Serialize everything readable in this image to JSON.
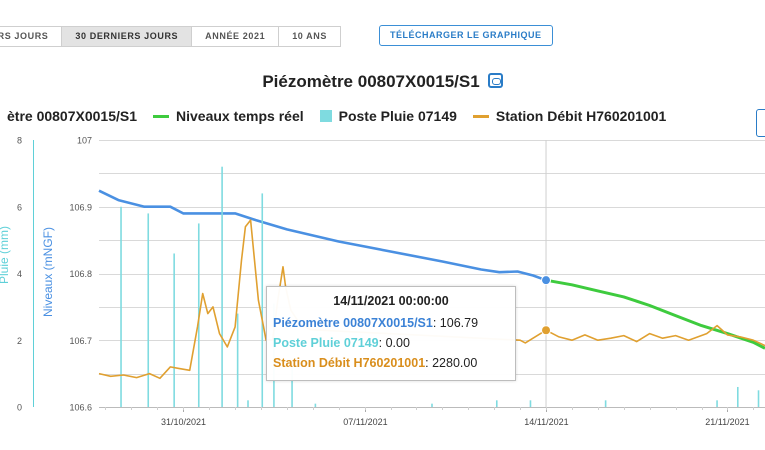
{
  "tabs": [
    {
      "label": "ERS JOURS",
      "active": false
    },
    {
      "label": "30 DERNIERS JOURS",
      "active": true
    },
    {
      "label": "ANNÉE 2021",
      "active": false
    },
    {
      "label": "10 ANS",
      "active": false
    }
  ],
  "download_label": "TÉLÉCHARGER LE GRAPHIQUE",
  "title": "Piézomètre 00807X0015/S1",
  "legend": [
    {
      "label": "ètre 00807X0015/S1",
      "color": "#4a90e2",
      "symbol": "line"
    },
    {
      "label": "Niveaux temps réel",
      "color": "#3ecb3e",
      "symbol": "line"
    },
    {
      "label": "Poste Pluie 07149",
      "color": "#7fdbe0",
      "symbol": "rect"
    },
    {
      "label": "Station Débit H760201001",
      "color": "#e0a030",
      "symbol": "line"
    }
  ],
  "tooltip": {
    "title": "14/11/2021 00:00:00",
    "rows": [
      {
        "name": "Piézomètre 00807X0015/S1",
        "value": "106.79",
        "color": "#3b82d6"
      },
      {
        "name": "Poste Pluie 07149",
        "value": "0.00",
        "color": "#5fd0d8"
      },
      {
        "name": "Station Débit H760201001",
        "value": "2280.00",
        "color": "#d98e1c"
      }
    ]
  },
  "chart_data": {
    "type": "line",
    "x_axis": {
      "ticks": [
        "31/10/2021",
        "07/11/2021",
        "14/11/2021",
        "21/11/2021"
      ],
      "tick_days": [
        0,
        7,
        14,
        21
      ],
      "range_days": [
        -3.25,
        22.45
      ]
    },
    "left_axis": {
      "label": "Pluie (mm)",
      "ticks": [
        "0",
        "2",
        "4",
        "6",
        "8"
      ],
      "range": [
        0,
        8
      ],
      "color": "#5fd0d8"
    },
    "right_axis": {
      "label": "Niveaux (mNGF)",
      "ticks": [
        "106.6",
        "106.7",
        "106.8",
        "106.9",
        "107"
      ],
      "range": [
        106.6,
        107
      ],
      "color": "#4a90e2"
    },
    "series": [
      {
        "name": "Piézomètre 00807X0015/S1",
        "color": "#4a90e2",
        "axis": "level",
        "points": [
          [
            -3.25,
            106.924
          ],
          [
            -2.5,
            106.91
          ],
          [
            -1.5,
            106.9
          ],
          [
            -0.5,
            106.9
          ],
          [
            0,
            106.89
          ],
          [
            1,
            106.89
          ],
          [
            2,
            106.89
          ],
          [
            2.8,
            106.88
          ],
          [
            4,
            106.866
          ],
          [
            6,
            106.848
          ],
          [
            8,
            106.833
          ],
          [
            10,
            106.818
          ],
          [
            11.5,
            106.806
          ],
          [
            12.2,
            106.802
          ],
          [
            12.9,
            106.803
          ],
          [
            13.5,
            106.797
          ],
          [
            14,
            106.79
          ]
        ]
      },
      {
        "name": "Niveaux temps réel",
        "color": "#3ecb3e",
        "axis": "level",
        "points": [
          [
            14,
            106.79
          ],
          [
            15,
            106.783
          ],
          [
            16,
            106.774
          ],
          [
            17,
            106.765
          ],
          [
            18,
            106.752
          ],
          [
            19,
            106.737
          ],
          [
            20,
            106.722
          ],
          [
            21,
            106.71
          ],
          [
            22,
            106.697
          ],
          [
            22.45,
            106.688
          ]
        ]
      },
      {
        "name": "Poste Pluie 07149",
        "color": "#7fdbe0",
        "axis": "rain",
        "type": "bar",
        "points": [
          [
            -2.4,
            6.0
          ],
          [
            -1.35,
            5.8
          ],
          [
            -0.35,
            4.6
          ],
          [
            0.6,
            5.5
          ],
          [
            1.5,
            7.2
          ],
          [
            2.1,
            2.8
          ],
          [
            2.5,
            0.2
          ],
          [
            3.05,
            6.4
          ],
          [
            3.5,
            3.1
          ],
          [
            4.2,
            1.2
          ],
          [
            5.1,
            0.1
          ],
          [
            9.6,
            0.1
          ],
          [
            12.1,
            0.2
          ],
          [
            13.4,
            0.2
          ],
          [
            16.3,
            0.2
          ],
          [
            20.6,
            0.2
          ],
          [
            21.4,
            0.6
          ],
          [
            22.2,
            0.5
          ]
        ]
      },
      {
        "name": "Station Débit H760201001",
        "color": "#e0a030",
        "axis": "level",
        "points": [
          [
            -3.25,
            106.65
          ],
          [
            -2.8,
            106.646
          ],
          [
            -2.3,
            106.648
          ],
          [
            -1.8,
            106.644
          ],
          [
            -1.3,
            106.65
          ],
          [
            -0.9,
            106.643
          ],
          [
            -0.5,
            106.66
          ],
          [
            -0.2,
            106.658
          ],
          [
            0.25,
            106.655
          ],
          [
            0.55,
            106.72
          ],
          [
            0.75,
            106.77
          ],
          [
            0.95,
            106.74
          ],
          [
            1.15,
            106.75
          ],
          [
            1.4,
            106.71
          ],
          [
            1.7,
            106.69
          ],
          [
            2.0,
            106.72
          ],
          [
            2.25,
            106.82
          ],
          [
            2.4,
            106.87
          ],
          [
            2.6,
            106.88
          ],
          [
            2.75,
            106.82
          ],
          [
            2.9,
            106.76
          ],
          [
            3.2,
            106.7
          ],
          [
            3.45,
            106.7
          ],
          [
            3.65,
            106.76
          ],
          [
            3.85,
            106.81
          ],
          [
            3.95,
            106.78
          ],
          [
            4.15,
            106.745
          ],
          [
            4.5,
            106.725
          ],
          [
            4.9,
            106.716
          ],
          [
            5.3,
            106.715
          ],
          [
            13.0,
            106.7
          ],
          [
            13.2,
            106.696
          ],
          [
            14.0,
            106.715
          ],
          [
            14.5,
            106.705
          ],
          [
            15,
            106.7
          ],
          [
            15.5,
            106.708
          ],
          [
            16,
            106.7
          ],
          [
            16.5,
            106.703
          ],
          [
            17,
            106.707
          ],
          [
            17.5,
            106.698
          ],
          [
            18,
            106.71
          ],
          [
            18.5,
            106.703
          ],
          [
            19,
            106.707
          ],
          [
            19.5,
            106.7
          ],
          [
            20.2,
            106.71
          ],
          [
            20.6,
            106.722
          ],
          [
            21,
            106.708
          ],
          [
            21.5,
            106.705
          ],
          [
            22,
            106.7
          ],
          [
            22.45,
            106.692
          ]
        ]
      }
    ],
    "markers": [
      {
        "series": "Piézomètre 00807X0015/S1",
        "x": 14,
        "y": 106.79,
        "color": "#4a90e2"
      },
      {
        "series": "Station Débit H760201001",
        "x": 14,
        "y": 106.715,
        "color": "#e0a030"
      }
    ],
    "grid": true
  }
}
